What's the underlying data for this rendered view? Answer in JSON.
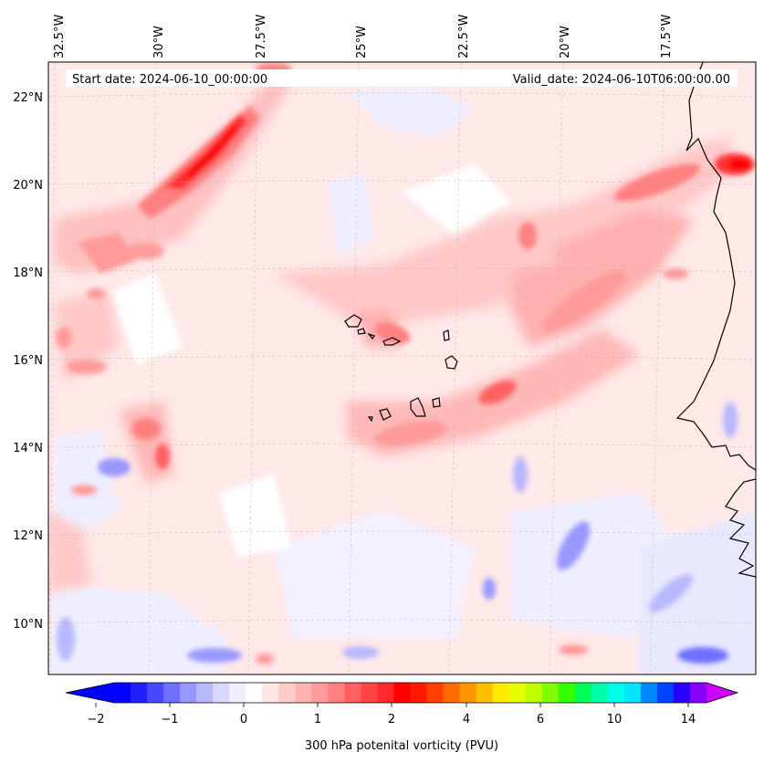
{
  "header": {
    "start_date": "Start date: 2024-06-10_00:00:00",
    "valid_date": "Valid_date: 2024-06-10T06:00:00.00"
  },
  "map": {
    "type": "contour-map",
    "variable_label": "300 hPa potenital vorticity (PVU)",
    "lon_labels": [
      "32.5°W",
      "30°W",
      "27.5°W",
      "25°W",
      "22.5°W",
      "20°W",
      "17.5°W"
    ],
    "lat_labels": [
      "22°N",
      "20°N",
      "18°N",
      "16°N",
      "14°N",
      "12°N",
      "10°N"
    ],
    "lon_range": [
      -32.5,
      -15.5
    ],
    "lat_range": [
      8.9,
      22.8
    ]
  },
  "colorbar": {
    "tick_labels": [
      "−2",
      "−1",
      "0",
      "1",
      "2",
      "4",
      "6",
      "10",
      "14"
    ],
    "colors": [
      "#0000ff",
      "#2020ff",
      "#4848ff",
      "#7070ff",
      "#9898ff",
      "#b8b8ff",
      "#d8d8ff",
      "#eeeeff",
      "#ffffff",
      "#ffe6e6",
      "#ffcccc",
      "#ffb3b3",
      "#ff9a9a",
      "#ff8080",
      "#ff6060",
      "#ff4444",
      "#ff2a2a",
      "#ff0000",
      "#ff1a00",
      "#ff4000",
      "#ff6a00",
      "#ff9500",
      "#ffbf00",
      "#ffea00",
      "#e6ff00",
      "#bfff00",
      "#80ff00",
      "#33ff00",
      "#00ff55",
      "#00ffaa",
      "#00ffe6",
      "#00e5ff",
      "#0088ff",
      "#0044ff",
      "#2a00ff",
      "#8800ff"
    ],
    "under_color": "#0000ff",
    "over_color": "#cc00ff"
  }
}
